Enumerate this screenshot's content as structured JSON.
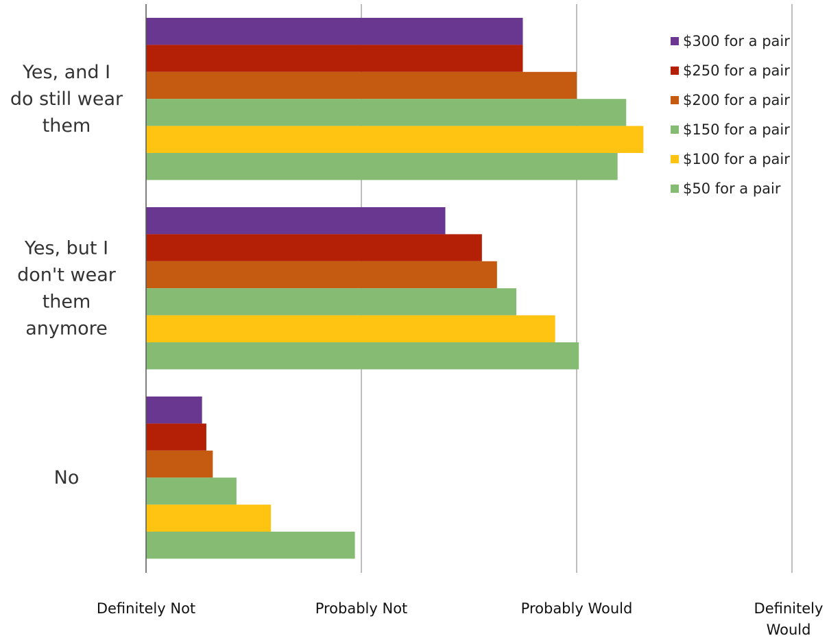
{
  "chart_data": {
    "type": "bar",
    "orientation": "horizontal",
    "title": "",
    "xlabel": "",
    "ylabel": "",
    "categories": [
      [
        "Yes, and I",
        "do still wear",
        "them"
      ],
      [
        "Yes, but I",
        "don't wear",
        "them",
        "anymore"
      ],
      [
        "No"
      ]
    ],
    "x_ticks": [
      {
        "value": 1,
        "lines": [
          "Definitely Not"
        ]
      },
      {
        "value": 2,
        "lines": [
          "Probably Not"
        ]
      },
      {
        "value": 3,
        "lines": [
          "Probably Would"
        ]
      },
      {
        "value": 4,
        "lines": [
          "Definitely",
          "Would"
        ]
      }
    ],
    "xlim": [
      1,
      4
    ],
    "grid": "vertical",
    "legend_position": "top-right",
    "series": [
      {
        "name": "$300 for a pair",
        "color": "#6a3790",
        "values": [
          2.75,
          2.39,
          1.26
        ]
      },
      {
        "name": "$250 for a pair",
        "color": "#b32006",
        "values": [
          2.75,
          2.56,
          1.28
        ]
      },
      {
        "name": "$200 for a pair",
        "color": "#c55a11",
        "values": [
          3.0,
          2.63,
          1.31
        ]
      },
      {
        "name": "$150 for a pair",
        "color": "#85bb72",
        "values": [
          3.23,
          2.72,
          1.42
        ]
      },
      {
        "name": "$100 for a pair",
        "color": "#ffc312",
        "values": [
          3.31,
          2.9,
          1.58
        ]
      },
      {
        "name": "$50 for a pair",
        "color": "#85bb72",
        "values": [
          3.19,
          3.01,
          1.97
        ]
      }
    ]
  }
}
